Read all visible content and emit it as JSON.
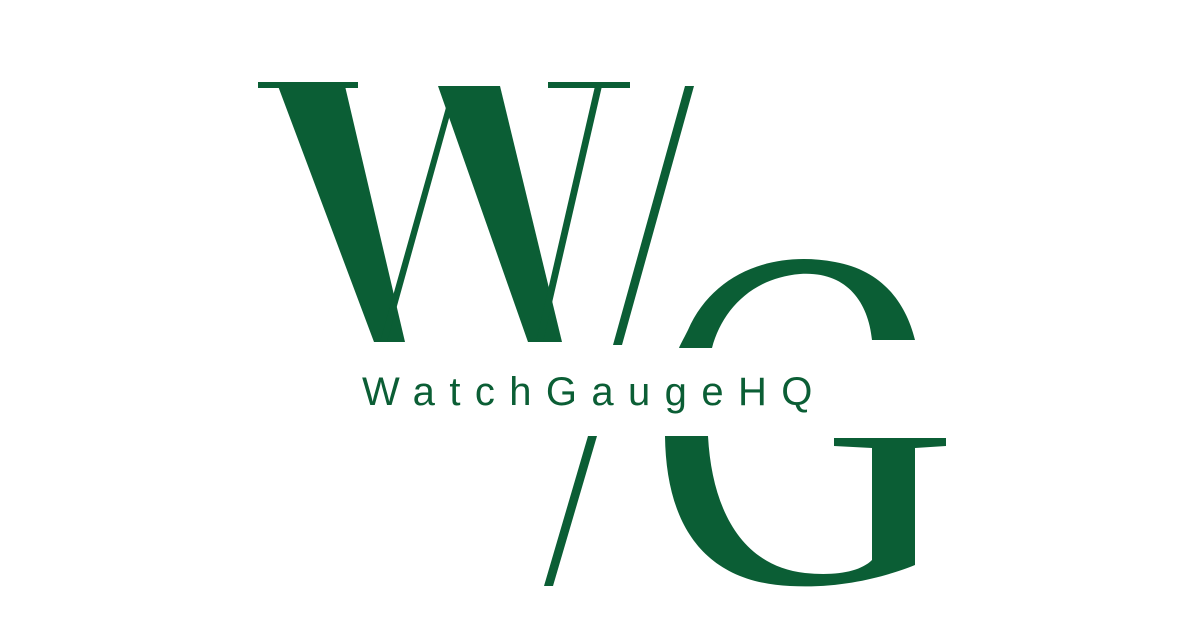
{
  "logo": {
    "monogram_letter_1": "W",
    "monogram_separator": "/",
    "monogram_letter_2": "G",
    "wordmark": "WatchGaugeHQ",
    "brand_color": "#0b5e35",
    "background_color": "#ffffff"
  }
}
